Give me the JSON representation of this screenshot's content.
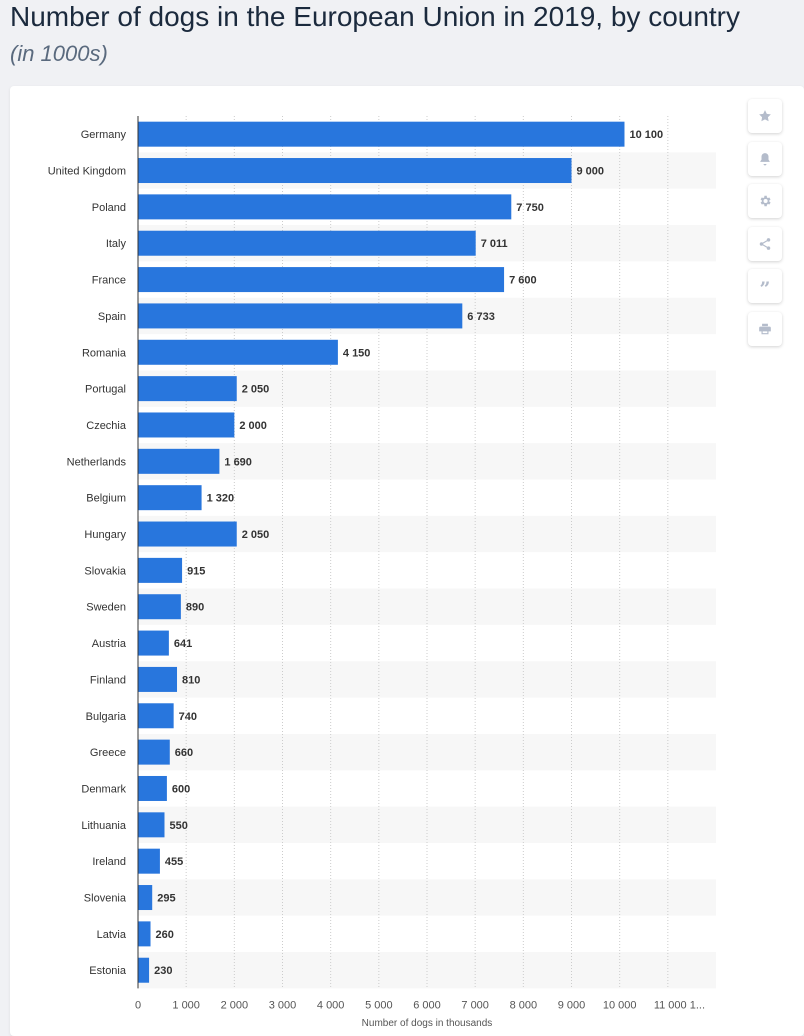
{
  "header": {
    "title": "Number of dogs in the European Union in 2019, by country",
    "subtitle": "(in 1000s)"
  },
  "toolbar": {
    "buttons": [
      {
        "name": "favorite",
        "icon": "star-icon"
      },
      {
        "name": "notify",
        "icon": "bell-icon"
      },
      {
        "name": "settings",
        "icon": "gear-icon"
      },
      {
        "name": "share",
        "icon": "share-icon"
      },
      {
        "name": "cite",
        "icon": "quote-icon"
      },
      {
        "name": "print",
        "icon": "print-icon"
      }
    ]
  },
  "colors": {
    "bar": "#2876dd",
    "stripe": "#f7f7f7",
    "label": "#333333",
    "axis": "#555555",
    "grid": "#cccccc"
  },
  "chart_data": {
    "type": "bar",
    "orientation": "horizontal",
    "categories": [
      "Germany",
      "United Kingdom",
      "Poland",
      "Italy",
      "France",
      "Spain",
      "Romania",
      "Portugal",
      "Czechia",
      "Netherlands",
      "Belgium",
      "Hungary",
      "Slovakia",
      "Sweden",
      "Austria",
      "Finland",
      "Bulgaria",
      "Greece",
      "Denmark",
      "Lithuania",
      "Ireland",
      "Slovenia",
      "Latvia",
      "Estonia"
    ],
    "values": [
      10100,
      9000,
      7750,
      7011,
      7600,
      6733,
      4150,
      2050,
      2000,
      1690,
      1320,
      2050,
      915,
      890,
      641,
      810,
      740,
      660,
      600,
      550,
      455,
      295,
      260,
      230
    ],
    "value_labels": [
      "10 100",
      "9 000",
      "7 750",
      "7 011",
      "7 600",
      "6 733",
      "4 150",
      "2 050",
      "2 000",
      "1 690",
      "1 320",
      "2 050",
      "915",
      "890",
      "641",
      "810",
      "740",
      "660",
      "600",
      "550",
      "455",
      "295",
      "260",
      "230"
    ],
    "xticks": [
      0,
      1000,
      2000,
      3000,
      4000,
      5000,
      6000,
      7000,
      8000,
      9000,
      10000,
      11000
    ],
    "xtick_labels": [
      "0",
      "1 000",
      "2 000",
      "3 000",
      "4 000",
      "5 000",
      "6 000",
      "7 000",
      "8 000",
      "9 000",
      "10 000",
      "11 000 1..."
    ],
    "xlim": [
      0,
      12000
    ],
    "xlabel": "Number of dogs in thousands",
    "ylabel": "",
    "grid": "vertical dashed",
    "legend": "none"
  }
}
